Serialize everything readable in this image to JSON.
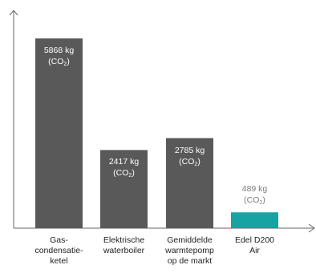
{
  "chart_data": {
    "type": "bar",
    "title": "",
    "xlabel": "",
    "ylabel": "",
    "ylim": [
      0,
      6000
    ],
    "grid": false,
    "legend": "none",
    "categories": [
      [
        "Gas-",
        "condensatie-",
        "ketel"
      ],
      [
        "Elektrische",
        "waterboiler"
      ],
      [
        "Gemiddelde",
        "warmtepomp",
        "op de markt"
      ],
      [
        "Edel D200",
        "Air"
      ]
    ],
    "values": [
      5868,
      2417,
      2785,
      489
    ],
    "data_labels": [
      {
        "amount": "5868 kg",
        "unit_pre": "(CO",
        "unit_sub": "2",
        "unit_post": ")"
      },
      {
        "amount": "2417 kg",
        "unit_pre": "(CO",
        "unit_sub": "2",
        "unit_post": ")"
      },
      {
        "amount": "2785 kg",
        "unit_pre": "(CO",
        "unit_sub": "2",
        "unit_post": ")"
      },
      {
        "amount": "489 kg",
        "unit_pre": "(CO",
        "unit_sub": "2",
        "unit_post": ")"
      }
    ],
    "colors": {
      "default": "#595959",
      "highlight": "#16a3a2",
      "axis": "#666666"
    },
    "highlight_index": 3
  }
}
